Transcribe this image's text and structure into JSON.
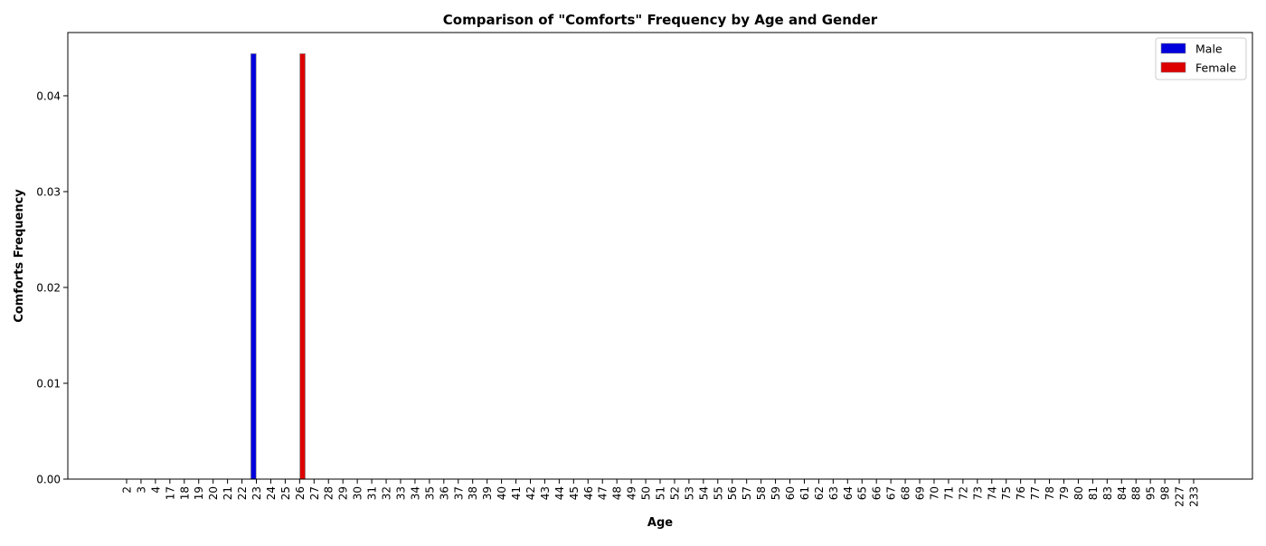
{
  "chart_data": {
    "type": "bar",
    "title": "Comparison of \"Comforts\" Frequency by Age and Gender",
    "xlabel": "Age",
    "ylabel": "Comforts Frequency",
    "categories": [
      "2",
      "3",
      "4",
      "17",
      "18",
      "19",
      "20",
      "21",
      "22",
      "23",
      "24",
      "25",
      "26",
      "27",
      "28",
      "29",
      "30",
      "31",
      "32",
      "33",
      "34",
      "35",
      "36",
      "37",
      "38",
      "39",
      "40",
      "41",
      "42",
      "43",
      "44",
      "45",
      "46",
      "47",
      "48",
      "49",
      "50",
      "51",
      "52",
      "53",
      "54",
      "55",
      "56",
      "57",
      "58",
      "59",
      "60",
      "61",
      "62",
      "63",
      "64",
      "65",
      "66",
      "67",
      "68",
      "69",
      "70",
      "71",
      "72",
      "73",
      "74",
      "75",
      "76",
      "77",
      "78",
      "79",
      "80",
      "81",
      "83",
      "84",
      "88",
      "95",
      "98",
      "227",
      "233"
    ],
    "series": [
      {
        "name": "Male",
        "color": "#0000dd",
        "values": [
          0,
          0,
          0,
          0,
          0,
          0,
          0,
          0,
          0,
          0.0444,
          0,
          0,
          0,
          0,
          0,
          0,
          0,
          0,
          0,
          0,
          0,
          0,
          0,
          0,
          0,
          0,
          0,
          0,
          0,
          0,
          0,
          0,
          0,
          0,
          0,
          0,
          0,
          0,
          0,
          0,
          0,
          0,
          0,
          0,
          0,
          0,
          0,
          0,
          0,
          0,
          0,
          0,
          0,
          0,
          0,
          0,
          0,
          0,
          0,
          0,
          0,
          0,
          0,
          0,
          0,
          0,
          0,
          0,
          0,
          0,
          0,
          0,
          0,
          0,
          0
        ]
      },
      {
        "name": "Female",
        "color": "#dd0000",
        "values": [
          0,
          0,
          0,
          0,
          0,
          0,
          0,
          0,
          0,
          0,
          0,
          0,
          0.0444,
          0,
          0,
          0,
          0,
          0,
          0,
          0,
          0,
          0,
          0,
          0,
          0,
          0,
          0,
          0,
          0,
          0,
          0,
          0,
          0,
          0,
          0,
          0,
          0,
          0,
          0,
          0,
          0,
          0,
          0,
          0,
          0,
          0,
          0,
          0,
          0,
          0,
          0,
          0,
          0,
          0,
          0,
          0,
          0,
          0,
          0,
          0,
          0,
          0,
          0,
          0,
          0,
          0,
          0,
          0,
          0,
          0,
          0,
          0,
          0,
          0,
          0
        ]
      }
    ],
    "yticks": [
      "0.00",
      "0.01",
      "0.02",
      "0.03",
      "0.04"
    ],
    "ylim": [
      0,
      0.0466
    ],
    "grid": false,
    "legend_position": "top-right"
  }
}
